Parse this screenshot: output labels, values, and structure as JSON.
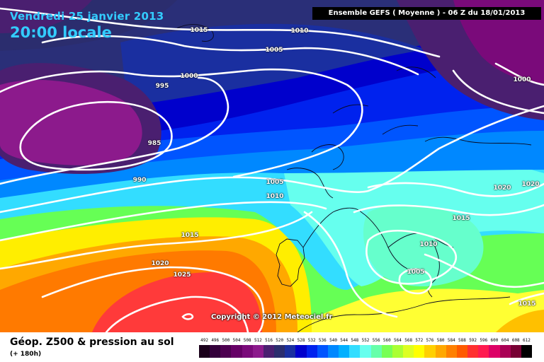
{
  "header": {
    "date_line": "Vendredi 25 janvier 2013",
    "time_line": "20:00 locale",
    "model_run": "Ensemble GEFS ( Moyenne )  -  06 Z du 18/01/2013"
  },
  "copyright": "Copyright © 2012 Meteociel.fr",
  "footer": {
    "variable_title": "Géop. Z500 & pression au sol",
    "lead_time": "(+ 180h)"
  },
  "legend": {
    "labels": [
      "492",
      "496",
      "500",
      "504",
      "508",
      "512",
      "516",
      "520",
      "524",
      "528",
      "532",
      "536",
      "540",
      "544",
      "548",
      "552",
      "556",
      "560",
      "564",
      "568",
      "572",
      "576",
      "580",
      "584",
      "588",
      "592",
      "596",
      "600",
      "604",
      "608",
      "612"
    ],
    "colors": [
      "#1a001a",
      "#33003a",
      "#4d0050",
      "#660066",
      "#7a0a7a",
      "#8c1a8c",
      "#4a1f70",
      "#2b2d6e",
      "#1a2fa0",
      "#0000cc",
      "#0022ee",
      "#0055ff",
      "#0088ff",
      "#00b0ff",
      "#33ddff",
      "#66ffee",
      "#66ffaa",
      "#77ff55",
      "#aaff33",
      "#ddff22",
      "#ffff00",
      "#ffd000",
      "#ffa800",
      "#ff8000",
      "#ff5a00",
      "#ff3030",
      "#ff1a50",
      "#dd0066",
      "#aa0055",
      "#770033",
      "#000000"
    ]
  },
  "isobars": [
    {
      "label": "1015",
      "name": "isobar-label-1015-north"
    },
    {
      "label": "1010",
      "name": "isobar-label-1010-north"
    },
    {
      "label": "1005",
      "name": "isobar-label-1005-north"
    },
    {
      "label": "1000",
      "name": "isobar-label-1000-north"
    },
    {
      "label": "995",
      "name": "isobar-label-995"
    },
    {
      "label": "985",
      "name": "isobar-label-985"
    },
    {
      "label": "990",
      "name": "isobar-label-990"
    },
    {
      "label": "1000",
      "name": "isobar-label-1000-east"
    },
    {
      "label": "1005",
      "name": "isobar-label-1005-france"
    },
    {
      "label": "1010",
      "name": "isobar-label-1010-france"
    },
    {
      "label": "1020",
      "name": "isobar-label-1020-east-a"
    },
    {
      "label": "1020",
      "name": "isobar-label-1020-east-b"
    },
    {
      "label": "1015",
      "name": "isobar-label-1015-balkans"
    },
    {
      "label": "1010",
      "name": "isobar-label-1010-italy"
    },
    {
      "label": "1005",
      "name": "isobar-label-1005-med"
    },
    {
      "label": "1015",
      "name": "isobar-label-1015-atlantic"
    },
    {
      "label": "1020",
      "name": "isobar-label-1020-atlantic"
    },
    {
      "label": "1025",
      "name": "isobar-label-1025"
    },
    {
      "label": "1015",
      "name": "isobar-label-1015-southeast"
    }
  ]
}
